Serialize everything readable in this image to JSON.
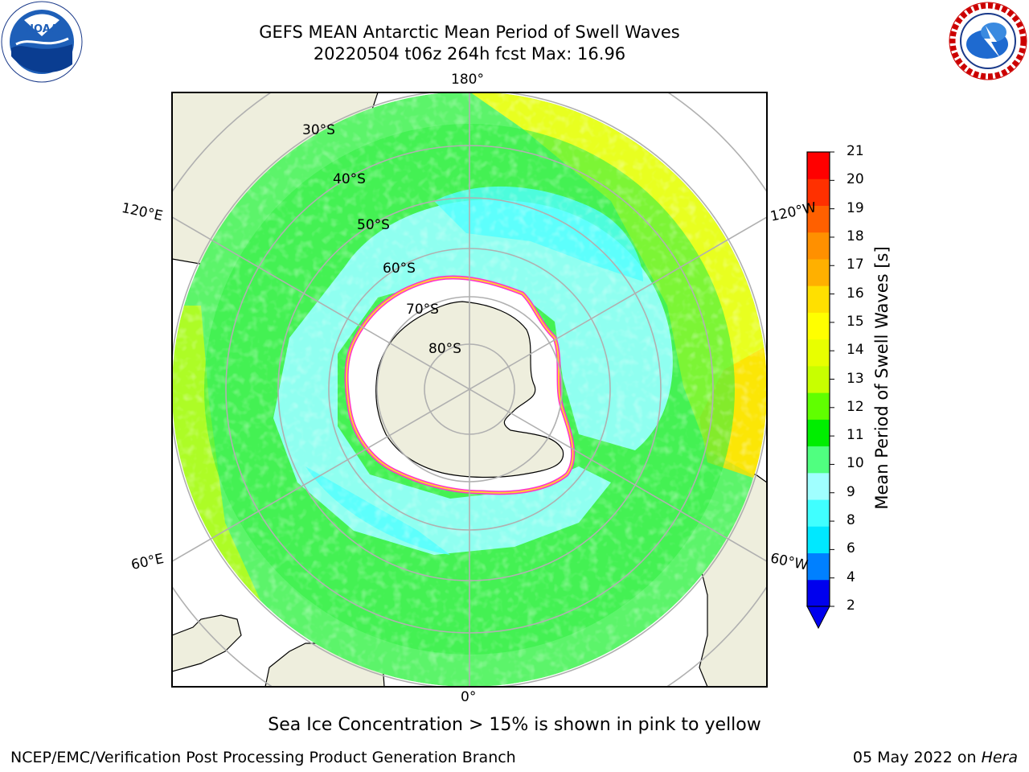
{
  "title_line1": "GEFS MEAN Antarctic Mean Period of Swell Waves",
  "title_line2": "20220504 t06z 264h fcst   Max: 16.96",
  "logos": {
    "left": "noaa-logo",
    "right": "nws-logo"
  },
  "map": {
    "projection": "south-polar-stereographic",
    "longitude_labels": [
      "180°",
      "120°E",
      "120°W",
      "60°E",
      "60°W",
      "0°"
    ],
    "latitude_labels": [
      "30°S",
      "40°S",
      "50°S",
      "60°S",
      "70°S",
      "80°S"
    ],
    "colors": {
      "land": "#eeeedd",
      "ice_shelf": "#ffffff",
      "grid": "#b0b0b0",
      "coast": "#000000"
    }
  },
  "colorbar": {
    "label": "Mean Period of Swell Waves [s]",
    "ticks": [
      "21",
      "20",
      "19",
      "18",
      "17",
      "16",
      "15",
      "14",
      "13",
      "12",
      "11",
      "10",
      "9",
      "8",
      "6",
      "4",
      "2"
    ],
    "colors": [
      "#0000ee",
      "#0080ff",
      "#00e8ff",
      "#40ffff",
      "#a0ffff",
      "#50ff80",
      "#00ee00",
      "#60ff00",
      "#c8ff00",
      "#e8ff00",
      "#ffff00",
      "#ffe000",
      "#ffb000",
      "#ff9000",
      "#ff6000",
      "#ff3000",
      "#ff0000"
    ]
  },
  "caption": "Sea Ice Concentration > 15% is shown in pink to yellow",
  "footer_left": "NCEP/EMC/Verification Post Processing Product Generation Branch",
  "footer_date": "05 May 2022 on ",
  "footer_machine": "Hera"
}
